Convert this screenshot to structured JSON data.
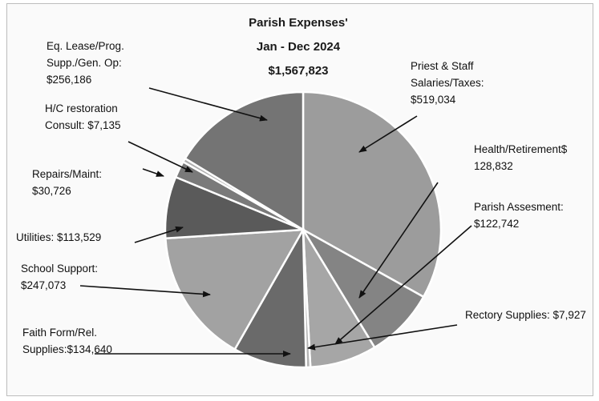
{
  "chart_data": {
    "type": "pie",
    "title_lines": [
      "Parish Expenses'",
      "Jan - Dec 2024",
      "$1,567,823"
    ],
    "slices": [
      {
        "label_lines": [
          "Priest & Staff",
          "Salaries/Taxes:",
          "$519,034"
        ],
        "value": 519034,
        "color": "#9c9c9c"
      },
      {
        "label_lines": [
          "Health/Retirement$",
          "128,832"
        ],
        "value": 128832,
        "color": "#848484"
      },
      {
        "label_lines": [
          "Parish Assesment:",
          "$122,742"
        ],
        "value": 122742,
        "color": "#a6a6a6"
      },
      {
        "label_lines": [
          "Rectory Supplies: $7,927"
        ],
        "value": 7927,
        "color": "#b4b4b4"
      },
      {
        "label_lines": [
          "Faith Form/Rel.",
          "Supplies:$134,640"
        ],
        "value": 134640,
        "color": "#6a6a6a"
      },
      {
        "label_lines": [
          "School Support:",
          "$247,073"
        ],
        "value": 247073,
        "color": "#a2a2a2"
      },
      {
        "label_lines": [
          "Utilities: $113,529"
        ],
        "value": 113529,
        "color": "#5a5a5a"
      },
      {
        "label_lines": [
          "Repairs/Maint:",
          "$30,726"
        ],
        "value": 30726,
        "color": "#7a7a7a"
      },
      {
        "label_lines": [
          "H/C restoration",
          "Consult: $7,135"
        ],
        "value": 7135,
        "color": "#b0b0b0"
      },
      {
        "label_lines": [
          "Eq. Lease/Prog.",
          "Supp./Gen. Op:",
          "$256,186"
        ],
        "value": 256186,
        "color": "#747474"
      }
    ],
    "start_angle_deg": 0,
    "direction": "clockwise"
  }
}
